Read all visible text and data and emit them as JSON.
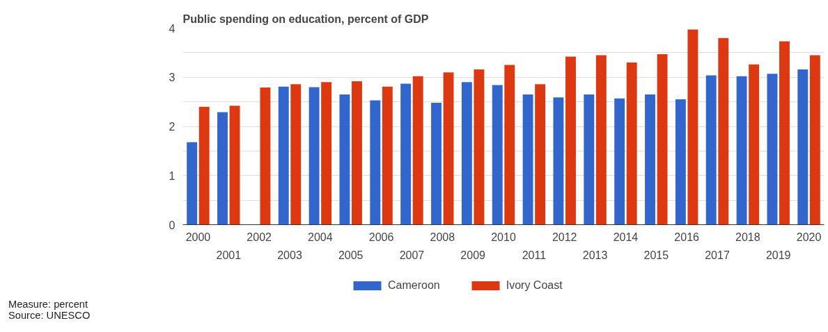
{
  "chart_data": {
    "type": "bar",
    "title": "Public spending on education, percent of GDP",
    "categories": [
      "2000",
      "2001",
      "2002",
      "2003",
      "2004",
      "2005",
      "2006",
      "2007",
      "2008",
      "2009",
      "2010",
      "2011",
      "2012",
      "2013",
      "2014",
      "2015",
      "2016",
      "2017",
      "2018",
      "2019",
      "2020"
    ],
    "series": [
      {
        "name": "Cameroon",
        "color": "#3366cc",
        "values": [
          1.68,
          2.29,
          null,
          2.81,
          2.8,
          2.65,
          2.53,
          2.87,
          2.48,
          2.9,
          2.84,
          2.65,
          2.59,
          2.65,
          2.57,
          2.65,
          2.55,
          3.04,
          3.02,
          3.07,
          3.16
        ]
      },
      {
        "name": "Ivory Coast",
        "color": "#dc3912",
        "values": [
          2.4,
          2.42,
          2.79,
          2.86,
          2.9,
          2.92,
          2.81,
          3.02,
          3.1,
          3.16,
          3.25,
          2.86,
          3.42,
          3.45,
          3.3,
          3.47,
          3.97,
          3.8,
          3.26,
          3.73,
          3.45
        ]
      }
    ],
    "ylim": [
      0,
      4
    ],
    "yticks": [
      0,
      {
        "value": 0.5,
        "label": null
      },
      1,
      {
        "value": 1.5,
        "label": null
      },
      2,
      {
        "value": 2.5,
        "label": null
      },
      3,
      {
        "value": 3.5,
        "label": null
      },
      4
    ],
    "grid": "y",
    "legend": "bottom",
    "annotations": [
      "Measure: percent",
      "Source: UNESCO"
    ]
  }
}
